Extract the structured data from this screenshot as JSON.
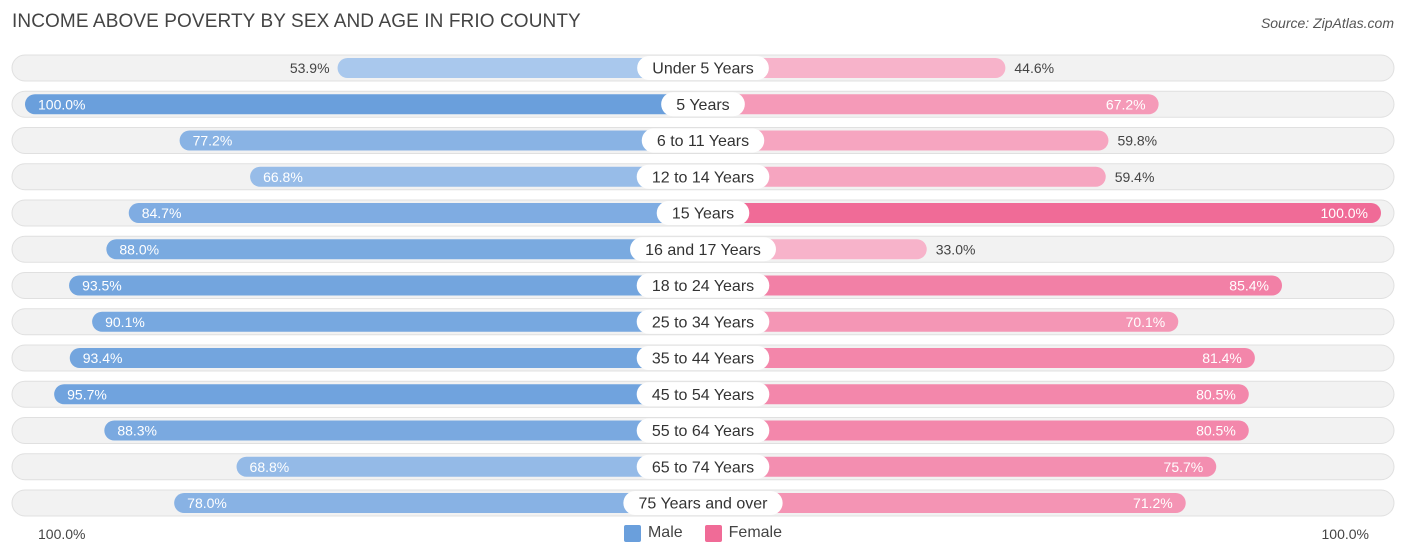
{
  "title": "INCOME ABOVE POVERTY BY SEX AND AGE IN FRIO COUNTY",
  "source": "Source: ZipAtlas.com",
  "legend": {
    "male": "Male",
    "female": "Female"
  },
  "axis": {
    "left_label": "100.0%",
    "right_label": "100.0%"
  },
  "colors": {
    "male_dark": "#6a9fdc",
    "male_light": "#aecbee",
    "female_dark": "#f06b97",
    "female_light": "#f7b3ca",
    "row_bg": "#f2f2f2",
    "row_border": "#e0e0e0"
  },
  "chart_data": {
    "type": "bar",
    "orientation": "horizontal-diverging",
    "categories": [
      "Under 5 Years",
      "5 Years",
      "6 to 11 Years",
      "12 to 14 Years",
      "15 Years",
      "16 and 17 Years",
      "18 to 24 Years",
      "25 to 34 Years",
      "35 to 44 Years",
      "45 to 54 Years",
      "55 to 64 Years",
      "65 to 74 Years",
      "75 Years and over"
    ],
    "series": [
      {
        "name": "Male",
        "values": [
          53.9,
          100.0,
          77.2,
          66.8,
          84.7,
          88.0,
          93.5,
          90.1,
          93.4,
          95.7,
          88.3,
          68.8,
          78.0
        ],
        "labels": [
          "53.9%",
          "100.0%",
          "77.2%",
          "66.8%",
          "84.7%",
          "88.0%",
          "93.5%",
          "90.1%",
          "93.4%",
          "95.7%",
          "88.3%",
          "68.8%",
          "78.0%"
        ]
      },
      {
        "name": "Female",
        "values": [
          44.6,
          67.2,
          59.8,
          59.4,
          100.0,
          33.0,
          85.4,
          70.1,
          81.4,
          80.5,
          80.5,
          75.7,
          71.2
        ],
        "labels": [
          "44.6%",
          "67.2%",
          "59.8%",
          "59.4%",
          "100.0%",
          "33.0%",
          "85.4%",
          "70.1%",
          "81.4%",
          "80.5%",
          "80.5%",
          "75.7%",
          "71.2%"
        ]
      }
    ],
    "xlim": [
      0,
      100
    ],
    "legend_position": "bottom-center"
  }
}
